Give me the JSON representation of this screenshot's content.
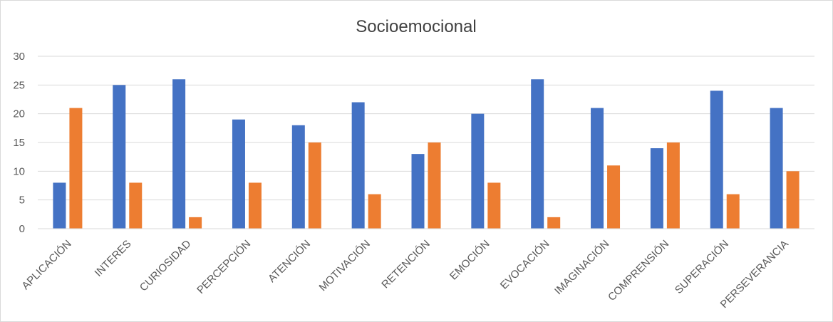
{
  "chart_data": {
    "type": "bar",
    "title": "Socioemocional",
    "xlabel": "",
    "ylabel": "",
    "ylim": [
      0,
      30
    ],
    "yticks": [
      0,
      5,
      10,
      15,
      20,
      25,
      30
    ],
    "grid": true,
    "legend": "none",
    "categories": [
      "APLICACIÓN",
      "INTERES",
      "CURIOSIDAD",
      "PERCEPCIÓN",
      "ATENCIÓN",
      "MOTIVACIÓN",
      "RETENCIÓN",
      "EMOCIÓN",
      "EVOCACIÓN",
      "IMAGINACIÓN",
      "COMPRENSIÓN",
      "SUPERACIÓN",
      "PERSEVERANCIA"
    ],
    "series": [
      {
        "color": "#4472c4",
        "values": [
          8,
          25,
          26,
          19,
          18,
          22,
          13,
          20,
          26,
          21,
          14,
          24,
          21
        ]
      },
      {
        "color": "#ed7d31",
        "values": [
          21,
          8,
          2,
          8,
          15,
          6,
          15,
          8,
          2,
          11,
          15,
          6,
          10
        ]
      }
    ]
  }
}
